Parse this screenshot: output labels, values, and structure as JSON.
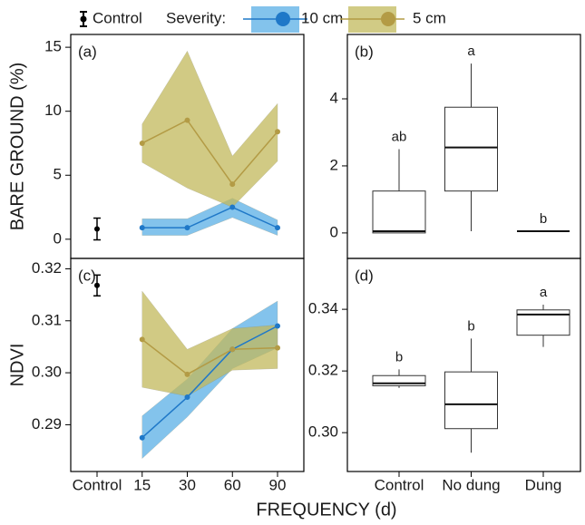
{
  "x_label": "FREQUENCY (d)",
  "frequency_categories": [
    "Control",
    "15",
    "30",
    "60",
    "90"
  ],
  "treatment_categories": [
    "Control",
    "No dung",
    "Dung"
  ],
  "legend_severity": "Severity:",
  "chart_data": [
    {
      "type": "band-line",
      "panel_label": "(a)",
      "y_label": "BARE GROUND (%)",
      "ylim": [
        -1.5,
        16
      ],
      "yticks": [
        0,
        5,
        10,
        15
      ],
      "control": {
        "name": "Control",
        "value": 0.8,
        "error": 0.85,
        "color": "#000000"
      },
      "series": [
        {
          "name": "10 cm",
          "color": "#1f78c8",
          "band_color": "#5aafe6",
          "values": [
            null,
            0.9,
            0.9,
            2.5,
            0.9
          ],
          "lower": [
            null,
            0.3,
            0.3,
            1.7,
            0.3
          ],
          "upper": [
            null,
            1.6,
            1.6,
            3.2,
            1.5
          ]
        },
        {
          "name": "5 cm",
          "color": "#b39b45",
          "band_color": "#c2b95c",
          "values": [
            null,
            7.5,
            9.3,
            4.3,
            8.4
          ],
          "lower": [
            null,
            6.0,
            4.0,
            2.5,
            6.1
          ],
          "upper": [
            null,
            9.0,
            14.7,
            6.5,
            10.6
          ]
        }
      ]
    },
    {
      "type": "box",
      "panel_label": "(b)",
      "ylim": [
        -0.76,
        5.92
      ],
      "yticks": [
        0,
        2,
        4
      ],
      "boxes": [
        {
          "min": 0,
          "q1": 0,
          "median": 0.05,
          "q3": 1.25,
          "max": 2.5,
          "letter": "ab"
        },
        {
          "min": 0.05,
          "q1": 1.25,
          "median": 2.55,
          "q3": 3.75,
          "max": 5.05,
          "letter": "a"
        },
        {
          "min": 0.05,
          "q1": 0.05,
          "median": 0.05,
          "q3": 0.05,
          "max": 0.05,
          "letter": "b"
        }
      ]
    },
    {
      "type": "band-line",
      "panel_label": "(c)",
      "y_label": "NDVI",
      "ylim": [
        0.281,
        0.322
      ],
      "yticks": [
        0.29,
        {
          "value": 0.3,
          "label": "0.30"
        },
        0.31,
        0.32
      ],
      "control": {
        "value": 0.3168,
        "error": 0.002,
        "color": "#000000"
      },
      "series": [
        {
          "color": "#1f78c8",
          "band_color": "#5aafe6",
          "values": [
            null,
            0.2875,
            0.2953,
            0.3045,
            0.309
          ],
          "lower": [
            null,
            0.2835,
            0.2915,
            0.3008,
            0.3048
          ],
          "upper": [
            null,
            0.2917,
            0.2988,
            0.3085,
            0.3138
          ]
        },
        {
          "color": "#b39b45",
          "band_color": "#c2b95c",
          "values": [
            null,
            0.3064,
            0.2997,
            0.3045,
            0.3048
          ],
          "lower": [
            null,
            0.2972,
            0.2955,
            0.3005,
            0.3008
          ],
          "upper": [
            null,
            0.3157,
            0.3045,
            0.3085,
            0.3092
          ]
        }
      ]
    },
    {
      "type": "box",
      "panel_label": "(d)",
      "ylim": [
        0.2874,
        0.3565
      ],
      "yticks": [
        {
          "value": 0.3,
          "label": "0.30"
        },
        0.32,
        0.34
      ],
      "boxes": [
        {
          "min": 0.3145,
          "q1": 0.3152,
          "median": 0.316,
          "q3": 0.3185,
          "max": 0.3205,
          "letter": "b"
        },
        {
          "min": 0.2935,
          "q1": 0.3013,
          "median": 0.3092,
          "q3": 0.3197,
          "max": 0.3305,
          "letter": "b"
        },
        {
          "min": 0.3278,
          "q1": 0.3316,
          "median": 0.3383,
          "q3": 0.3398,
          "max": 0.3415,
          "letter": "a"
        }
      ]
    }
  ]
}
